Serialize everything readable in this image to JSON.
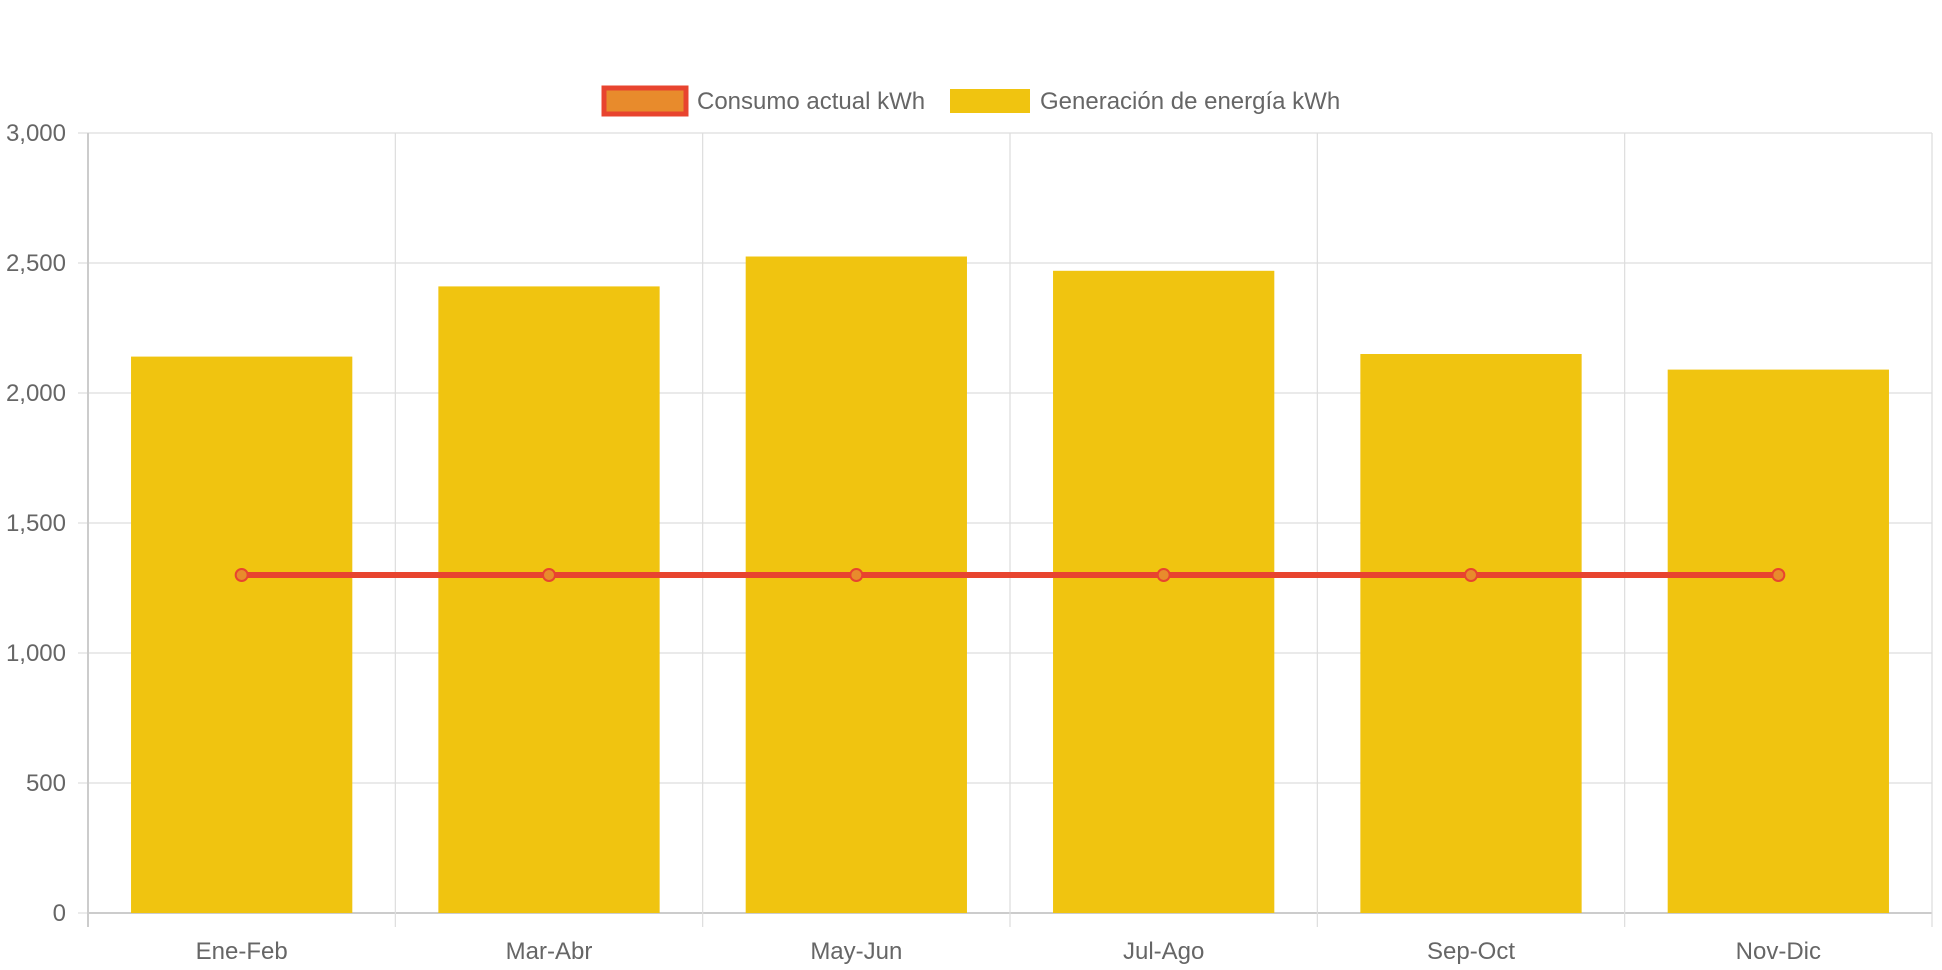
{
  "chart_data": {
    "type": "bar",
    "categories": [
      "Ene-Feb",
      "Mar-Abr",
      "May-Jun",
      "Jul-Ago",
      "Sep-Oct",
      "Nov-Dic"
    ],
    "series": [
      {
        "name": "Generación de energía kWh",
        "kind": "bar",
        "values": [
          2140,
          2410,
          2525,
          2470,
          2150,
          2090
        ],
        "color": "#F0C410"
      },
      {
        "name": "Consumo actual kWh",
        "kind": "line",
        "values": [
          1300,
          1300,
          1300,
          1300,
          1300,
          1300
        ],
        "color": "#E8442F",
        "point_fill": "#E88B2C"
      }
    ],
    "legend": [
      {
        "label": "Consumo actual kWh",
        "swatch_fill": "#E88B2C",
        "swatch_border": "#E8442F"
      },
      {
        "label": "Generación de energía kWh",
        "swatch_fill": "#F0C410",
        "swatch_border": "#F0C410"
      }
    ],
    "ylim": [
      0,
      3000
    ],
    "yticks": [
      0,
      500,
      1000,
      1500,
      2000,
      2500,
      3000
    ],
    "ytick_labels": [
      "0",
      "500",
      "1,000",
      "1,500",
      "2,000",
      "2,500",
      "3,000"
    ],
    "grid": true,
    "legend_position": "top-center",
    "title": "",
    "xlabel": "",
    "ylabel": "",
    "grid_color": "#DDDDDD",
    "axis_color": "#CCCCCC",
    "text_color": "#666666"
  }
}
